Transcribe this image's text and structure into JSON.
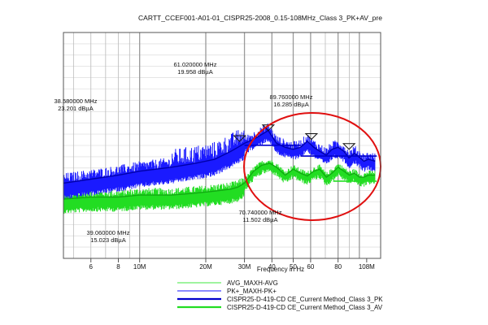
{
  "chart_data": {
    "type": "line",
    "title": "CARTT_CCEF001-A01-01_CISPR25-2008_0.15-108MHz_Class 3_PK+AV_pre",
    "xlabel": "Frequency in Hz",
    "ylabel": "",
    "x_scale": "log",
    "xlim_mhz": [
      4.5,
      125
    ],
    "tick_labels": [
      {
        "mhz": 6,
        "label": "6"
      },
      {
        "mhz": 8,
        "label": "8"
      },
      {
        "mhz": 10,
        "label": "10M"
      },
      {
        "mhz": 20,
        "label": "20M"
      },
      {
        "mhz": 30,
        "label": "30M"
      },
      {
        "mhz": 40,
        "label": "40"
      },
      {
        "mhz": 50,
        "label": "50"
      },
      {
        "mhz": 60,
        "label": "60"
      },
      {
        "mhz": 80,
        "label": "80"
      },
      {
        "mhz": 108,
        "label": "108M"
      }
    ],
    "grid": true,
    "series": [
      {
        "name": "PK+_MAXH-PK+",
        "color": "#1a1aff",
        "x": [
          4.5,
          6,
          8,
          10,
          14,
          18,
          22,
          26,
          28,
          30,
          33,
          38.5,
          42,
          46,
          50,
          54,
          58,
          62,
          66,
          70.74,
          75,
          80,
          85,
          89.76,
          95,
          100,
          105,
          110,
          118
        ],
        "y": [
          10,
          11,
          12,
          13,
          14,
          15,
          16,
          18,
          19,
          20,
          21,
          23.2,
          20,
          19,
          18.5,
          19,
          20.5,
          19,
          18,
          17,
          18.5,
          19,
          18,
          16.3,
          17.5,
          16.5,
          15.5,
          16,
          15.5
        ]
      },
      {
        "name": "AVG_MAXH-AVG",
        "color": "#22dd22",
        "x": [
          4.5,
          6,
          8,
          10,
          14,
          18,
          22,
          26,
          28,
          30,
          33,
          36,
          39.06,
          42,
          46,
          50,
          54,
          58,
          62,
          66,
          70.74,
          75,
          80,
          85,
          90,
          95,
          100,
          105,
          110,
          118
        ],
        "y": [
          6,
          6.5,
          6.5,
          7,
          7,
          7.5,
          8,
          8.5,
          9,
          10,
          13,
          14.5,
          15,
          14,
          12,
          13.5,
          12.5,
          11.8,
          13,
          13.5,
          11.5,
          12.5,
          14,
          13,
          12,
          12.5,
          11.5,
          11.5,
          12,
          12
        ]
      }
    ],
    "limit_lines": [
      {
        "name": "CISPR25-D-419-CD CE_Current Method_Class 3_PK",
        "color": "#0000cc",
        "segments": [
          {
            "x": [
              30,
              54
            ],
            "y": [
              19.5,
              19.5
            ]
          },
          {
            "x": [
              54,
              120
            ],
            "y": [
              16.8,
              16.8
            ]
          }
        ]
      },
      {
        "name": "CISPR25-D-419-CD CE_Current Method_Class 3_AV",
        "color": "#22dd22",
        "segments": [
          {
            "x": [
              76,
              120
            ],
            "y": [
              10.5,
              10.5
            ]
          }
        ]
      }
    ],
    "markers": [
      {
        "mhz": 28.5,
        "dbuA": 20.5
      },
      {
        "mhz": 38.5,
        "dbuA": 23.2
      },
      {
        "mhz": 60.5,
        "dbuA": 21.0
      },
      {
        "mhz": 89.76,
        "dbuA": 18.5
      }
    ],
    "annotations": [
      {
        "line1": "61.020000 MHz",
        "line2": "19.958 dBµA"
      },
      {
        "line1": "38.580000 MHz",
        "line2": "23.201 dBµA"
      },
      {
        "line1": "89.760000 MHz",
        "line2": "16.285 dBµA"
      },
      {
        "line1": "70.740000 MHz",
        "line2": "11.502 dBµA"
      },
      {
        "line1": "39.060000 MHz",
        "line2": "15.023 dBµA"
      }
    ],
    "highlight": {
      "shape": "ellipse",
      "color": "#e01010"
    },
    "legend": {
      "placement": "bottom",
      "entries": [
        {
          "label": "AVG_MAXH-AVG",
          "color": "#66ee66"
        },
        {
          "label": "PK+_MAXH-PK+",
          "color": "#4444ff"
        },
        {
          "label": "CISPR25-D-419-CD CE_Current Method_Class 3_PK",
          "color": "#0000cc"
        },
        {
          "label": "CISPR25-D-419-CD CE_Current Method_Class 3_AV",
          "color": "#22dd22"
        }
      ]
    }
  }
}
